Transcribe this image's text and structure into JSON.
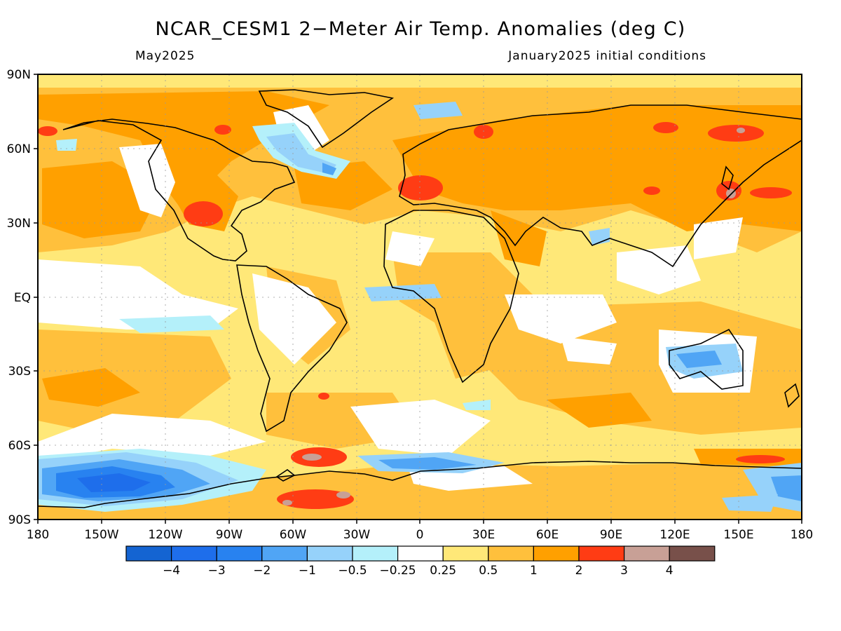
{
  "title": "NCAR_CESM1 2-Meter Air Temp. Anomalies (deg C)",
  "subtitle_left": "May2025",
  "subtitle_right": "January2025 initial conditions",
  "y_ticks": [
    "90N",
    "60N",
    "30N",
    "EQ",
    "30S",
    "60S",
    "90S"
  ],
  "x_ticks": [
    "180",
    "150W",
    "120W",
    "90W",
    "60W",
    "30W",
    "0",
    "30E",
    "60E",
    "90E",
    "120E",
    "150E",
    "180"
  ],
  "colorbar": {
    "colors": [
      "#1464d2",
      "#1e6eeb",
      "#2882f0",
      "#50a5f5",
      "#96d2fa",
      "#b4f0fa",
      "#ffffff",
      "#ffe878",
      "#ffc03c",
      "#ffa000",
      "#ff3c14",
      "#c8a096",
      "#78504a"
    ],
    "labels": [
      "-4",
      "-3",
      "-2",
      "-1",
      "-0.5",
      "-0.25",
      "0.25",
      "0.5",
      "1",
      "2",
      "3",
      "4"
    ]
  },
  "palette": {
    "warm_light": "#ffe878",
    "warm_mid": "#ffc03c",
    "warm_strong": "#ffa000",
    "hot": "#ff3c14",
    "very_hot": "#c8a096",
    "cool_light": "#b4f0fa",
    "cool_mid": "#96d2fa",
    "cool_strong": "#50a5f5",
    "cold": "#2882f0",
    "very_cold": "#1e6eeb"
  }
}
